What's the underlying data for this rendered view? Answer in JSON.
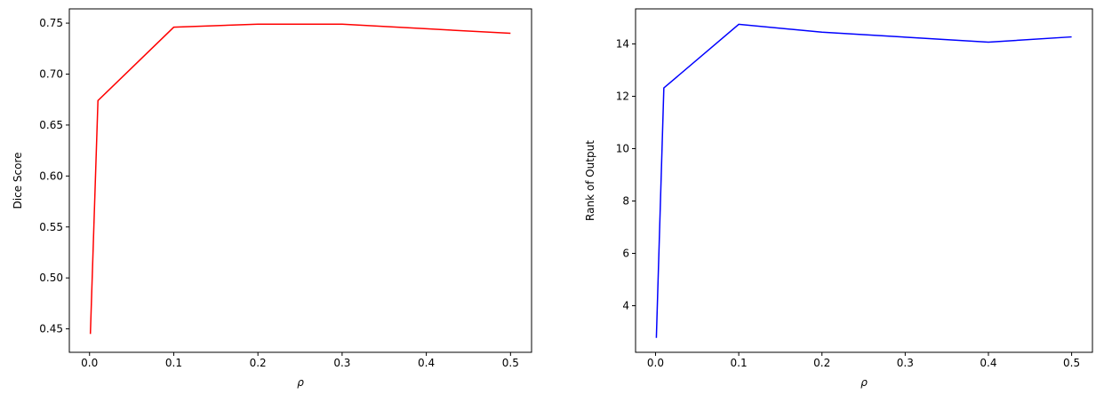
{
  "chart_data": [
    {
      "type": "line",
      "xlabel": "ρ",
      "ylabel": "Dice Score",
      "x": [
        0.001,
        0.01,
        0.1,
        0.2,
        0.3,
        0.4,
        0.5
      ],
      "series": [
        {
          "color": "#ff0000",
          "values": [
            0.445,
            0.674,
            0.746,
            0.749,
            0.749,
            0.7445,
            0.74
          ]
        }
      ],
      "xlim": [
        -0.024,
        0.525
      ],
      "xticks": [
        {
          "value": 0,
          "label": "0.0"
        },
        0.1,
        0.2,
        0.3,
        0.4,
        0.5
      ],
      "ylim": [
        0.427,
        0.764
      ],
      "yticks": [
        0.45,
        {
          "value": 0.5,
          "label": "0.50"
        },
        0.55,
        {
          "value": 0.6,
          "label": "0.60"
        },
        0.65,
        {
          "value": 0.7,
          "label": "0.70"
        },
        0.75
      ]
    },
    {
      "type": "line",
      "xlabel": "ρ",
      "ylabel": "Rank of Output",
      "x": [
        0.001,
        0.01,
        0.1,
        0.2,
        0.3,
        0.4,
        0.5
      ],
      "series": [
        {
          "color": "#0000ff",
          "values": [
            2.77,
            12.32,
            14.75,
            14.45,
            14.26,
            14.07,
            14.27
          ]
        }
      ],
      "xlim": [
        -0.024,
        0.525
      ],
      "xticks": [
        {
          "value": 0,
          "label": "0.0"
        },
        0.1,
        0.2,
        0.3,
        0.4,
        0.5
      ],
      "ylim": [
        2.22,
        15.34
      ],
      "yticks": [
        4,
        6,
        8,
        10,
        12,
        14
      ]
    }
  ]
}
